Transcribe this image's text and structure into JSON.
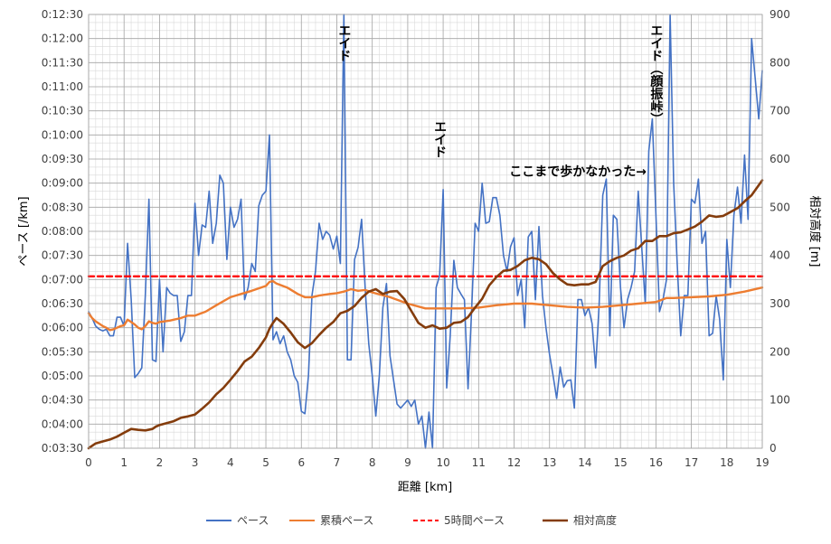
{
  "chart_data": {
    "type": "line",
    "xlabel": "距離 [km]",
    "ylabel_left": "ペース [/km]",
    "ylabel_right": "相対高度 [m]",
    "xlim": [
      0,
      19
    ],
    "x_ticks": [
      0,
      1,
      2,
      3,
      4,
      5,
      6,
      7,
      8,
      9,
      10,
      11,
      12,
      13,
      14,
      15,
      16,
      17,
      18,
      19
    ],
    "y_left_lim_seconds": [
      210,
      750
    ],
    "y_left_ticks": [
      "0:03:30",
      "0:04:00",
      "0:04:30",
      "0:05:00",
      "0:05:30",
      "0:06:00",
      "0:06:30",
      "0:07:00",
      "0:07:30",
      "0:08:00",
      "0:08:30",
      "0:09:00",
      "0:09:30",
      "0:10:00",
      "0:10:30",
      "0:11:00",
      "0:11:30",
      "0:12:00",
      "0:12:30"
    ],
    "y_right_lim": [
      0,
      900
    ],
    "y_right_ticks": [
      "0",
      "100",
      "200",
      "300",
      "400",
      "500",
      "600",
      "700",
      "800",
      "900"
    ],
    "grid": true,
    "legend_position": "bottom",
    "annotations": [
      {
        "text": "エイド",
        "x": 7.2,
        "y_seconds": 738,
        "vertical": true
      },
      {
        "text": "エイド",
        "x": 9.9,
        "y_seconds": 618,
        "vertical": true
      },
      {
        "text": "エイド（顔振峠）",
        "x": 16.0,
        "y_seconds": 738,
        "vertical": true
      },
      {
        "text": "ここまで歩かなかった→",
        "x": 13.8,
        "y_seconds": 549,
        "vertical": false
      }
    ],
    "series": [
      {
        "name": "ペース",
        "axis": "left",
        "color": "#4472c4",
        "x": [
          0,
          0.1,
          0.2,
          0.3,
          0.4,
          0.5,
          0.6,
          0.7,
          0.8,
          0.9,
          1.0,
          1.1,
          1.2,
          1.3,
          1.4,
          1.5,
          1.6,
          1.7,
          1.8,
          1.9,
          2.0,
          2.1,
          2.2,
          2.3,
          2.4,
          2.5,
          2.6,
          2.7,
          2.8,
          2.9,
          3.0,
          3.1,
          3.2,
          3.3,
          3.4,
          3.5,
          3.6,
          3.7,
          3.8,
          3.9,
          4.0,
          4.1,
          4.2,
          4.3,
          4.4,
          4.5,
          4.6,
          4.7,
          4.8,
          4.9,
          5.0,
          5.1,
          5.2,
          5.3,
          5.4,
          5.5,
          5.6,
          5.7,
          5.8,
          5.9,
          6.0,
          6.1,
          6.2,
          6.3,
          6.4,
          6.5,
          6.6,
          6.7,
          6.8,
          6.9,
          7.0,
          7.1,
          7.2,
          7.3,
          7.4,
          7.5,
          7.6,
          7.7,
          7.8,
          7.9,
          8.0,
          8.1,
          8.2,
          8.3,
          8.4,
          8.5,
          8.6,
          8.7,
          8.8,
          8.9,
          9.0,
          9.1,
          9.2,
          9.3,
          9.4,
          9.5,
          9.6,
          9.7,
          9.8,
          9.9,
          10.0,
          10.1,
          10.2,
          10.3,
          10.4,
          10.5,
          10.6,
          10.7,
          10.8,
          10.9,
          11.0,
          11.1,
          11.2,
          11.3,
          11.4,
          11.5,
          11.6,
          11.7,
          11.8,
          11.9,
          12.0,
          12.1,
          12.2,
          12.3,
          12.4,
          12.5,
          12.6,
          12.7,
          12.8,
          12.9,
          13.0,
          13.1,
          13.2,
          13.3,
          13.4,
          13.5,
          13.6,
          13.7,
          13.8,
          13.9,
          14.0,
          14.1,
          14.2,
          14.3,
          14.4,
          14.5,
          14.6,
          14.7,
          14.8,
          14.9,
          15.0,
          15.1,
          15.2,
          15.3,
          15.4,
          15.5,
          15.6,
          15.7,
          15.8,
          15.9,
          16.0,
          16.1,
          16.2,
          16.3,
          16.4,
          16.5,
          16.6,
          16.7,
          16.8,
          16.9,
          17.0,
          17.1,
          17.2,
          17.3,
          17.4,
          17.5,
          17.6,
          17.7,
          17.8,
          17.9,
          18.0,
          18.1,
          18.2,
          18.3,
          18.4,
          18.5,
          18.6,
          18.7,
          18.8,
          18.9,
          19.0
        ],
        "y_seconds": [
          380,
          372,
          362,
          358,
          356,
          358,
          350,
          350,
          373,
          373,
          362,
          465,
          395,
          298,
          303,
          310,
          400,
          520,
          320,
          318,
          420,
          330,
          410,
          403,
          400,
          400,
          343,
          355,
          400,
          400,
          515,
          450,
          488,
          485,
          530,
          465,
          490,
          550,
          540,
          445,
          510,
          485,
          495,
          520,
          395,
          410,
          440,
          430,
          512,
          525,
          530,
          600,
          345,
          355,
          340,
          350,
          330,
          320,
          300,
          292,
          256,
          253,
          300,
          400,
          430,
          490,
          470,
          480,
          475,
          458,
          474,
          440,
          750,
          320,
          320,
          445,
          460,
          495,
          410,
          340,
          300,
          250,
          300,
          385,
          415,
          325,
          295,
          265,
          260,
          265,
          270,
          262,
          270,
          240,
          250,
          210,
          255,
          210,
          410,
          425,
          532,
          285,
          350,
          444,
          410,
          402,
          395,
          284,
          380,
          490,
          480,
          540,
          490,
          492,
          522,
          522,
          500,
          450,
          430,
          461,
          472,
          400,
          420,
          360,
          473,
          480,
          395,
          486,
          400,
          360,
          327,
          300,
          272,
          311,
          286,
          294,
          295,
          260,
          395,
          395,
          375,
          385,
          365,
          310,
          389,
          525,
          545,
          350,
          500,
          495,
          410,
          360,
          395,
          410,
          430,
          530,
          460,
          390,
          580,
          620,
          500,
          380,
          395,
          420,
          750,
          540,
          440,
          350,
          400,
          400,
          520,
          515,
          545,
          465,
          480,
          350,
          353,
          400,
          370,
          295,
          470,
          410,
          500,
          535,
          490,
          575,
          495,
          720,
          670,
          620,
          680
        ]
      },
      {
        "name": "累積ペース",
        "axis": "left",
        "color": "#ed7d31",
        "x": [
          0,
          0.1,
          0.2,
          0.3,
          0.4,
          0.5,
          0.6,
          0.7,
          0.8,
          0.9,
          1.0,
          1.1,
          1.2,
          1.3,
          1.4,
          1.5,
          1.6,
          1.7,
          1.8,
          1.9,
          2.0,
          2.3,
          2.6,
          2.8,
          3.0,
          3.3,
          3.6,
          4.0,
          4.3,
          4.6,
          5.0,
          5.1,
          5.2,
          5.3,
          5.6,
          5.9,
          6.1,
          6.3,
          6.5,
          6.8,
          7.0,
          7.2,
          7.4,
          7.6,
          7.8,
          8.0,
          8.5,
          9.0,
          9.5,
          10.0,
          10.5,
          11.0,
          11.5,
          12.0,
          12.5,
          13.0,
          13.5,
          14.0,
          14.5,
          15.0,
          15.5,
          16.0,
          16.3,
          16.5,
          17.0,
          17.5,
          18.0,
          18.5,
          19.0
        ],
        "y_seconds": [
          378,
          372,
          368,
          365,
          362,
          360,
          357,
          358,
          360,
          362,
          363,
          370,
          367,
          364,
          360,
          358,
          362,
          368,
          366,
          365,
          367,
          369,
          372,
          375,
          375,
          380,
          388,
          398,
          402,
          406,
          412,
          417,
          418,
          415,
          410,
          402,
          398,
          398,
          400,
          402,
          403,
          405,
          408,
          406,
          407,
          404,
          398,
          390,
          384,
          384,
          384,
          385,
          388,
          390,
          390,
          388,
          386,
          385,
          386,
          388,
          390,
          392,
          397,
          397,
          398,
          399,
          401,
          405,
          410
        ]
      },
      {
        "name": "5時間ペース",
        "axis": "left",
        "color": "#ff0000",
        "dashed": true,
        "x": [
          0,
          19
        ],
        "y_seconds": [
          424,
          424
        ]
      },
      {
        "name": "相対高度",
        "axis": "right",
        "color": "#843c0c",
        "x": [
          0,
          0.1,
          0.2,
          0.4,
          0.6,
          0.8,
          1.0,
          1.1,
          1.2,
          1.4,
          1.6,
          1.8,
          1.9,
          2.0,
          2.2,
          2.4,
          2.6,
          2.8,
          3.0,
          3.1,
          3.2,
          3.4,
          3.6,
          3.8,
          4.0,
          4.2,
          4.4,
          4.6,
          4.8,
          5.0,
          5.1,
          5.2,
          5.3,
          5.5,
          5.7,
          5.9,
          6.1,
          6.3,
          6.5,
          6.7,
          6.9,
          7.1,
          7.3,
          7.5,
          7.7,
          7.9,
          8.1,
          8.3,
          8.5,
          8.7,
          8.9,
          9.1,
          9.3,
          9.5,
          9.7,
          9.9,
          10.1,
          10.3,
          10.5,
          10.7,
          10.9,
          11.1,
          11.3,
          11.5,
          11.7,
          11.9,
          12.1,
          12.3,
          12.5,
          12.7,
          12.9,
          13.1,
          13.3,
          13.5,
          13.7,
          13.9,
          14.1,
          14.3,
          14.5,
          14.7,
          14.9,
          15.1,
          15.3,
          15.5,
          15.7,
          15.9,
          16.1,
          16.3,
          16.5,
          16.7,
          16.9,
          17.1,
          17.3,
          17.5,
          17.7,
          17.9,
          18.1,
          18.3,
          18.5,
          18.7,
          19.0
        ],
        "y": [
          0,
          5,
          10,
          14,
          18,
          24,
          32,
          36,
          40,
          38,
          37,
          40,
          45,
          48,
          52,
          56,
          63,
          66,
          70,
          76,
          82,
          95,
          112,
          125,
          142,
          160,
          180,
          190,
          208,
          230,
          248,
          260,
          270,
          258,
          240,
          220,
          208,
          218,
          235,
          250,
          262,
          280,
          285,
          295,
          312,
          325,
          330,
          320,
          325,
          326,
          310,
          285,
          260,
          250,
          255,
          248,
          250,
          260,
          262,
          272,
          292,
          310,
          338,
          355,
          368,
          370,
          378,
          390,
          395,
          392,
          382,
          363,
          350,
          340,
          338,
          340,
          340,
          345,
          378,
          388,
          395,
          400,
          410,
          415,
          430,
          430,
          440,
          440,
          446,
          448,
          454,
          460,
          470,
          483,
          480,
          482,
          490,
          498,
          512,
          525,
          556
        ]
      }
    ]
  }
}
